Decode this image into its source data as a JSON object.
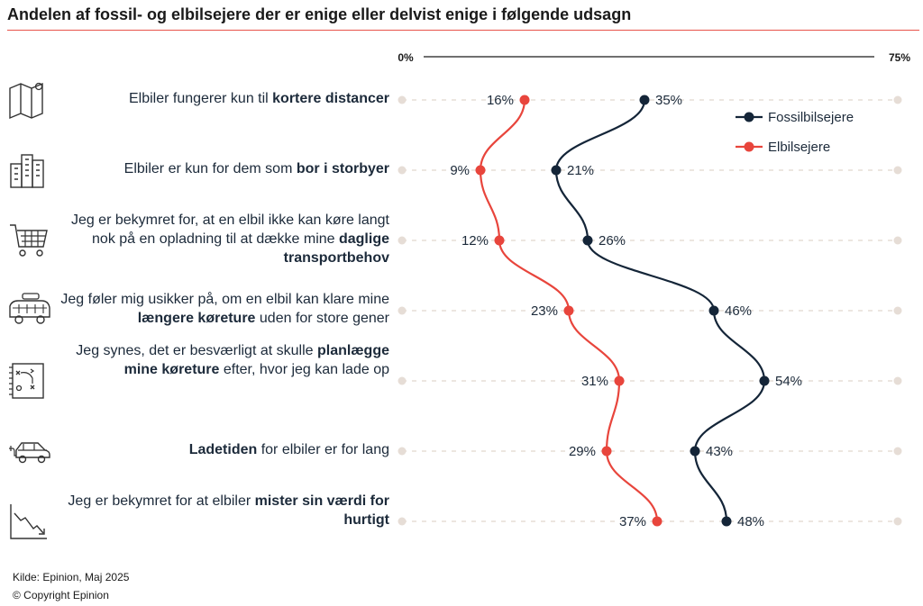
{
  "title": "Andelen af fossil- og elbilsejere der er enige eller delvist enige i følgende udsagn",
  "footer": {
    "source": "Kilde: Epinion, Maj 2025",
    "copyright": "© Copyright Epinion"
  },
  "colors": {
    "fossil": "#142538",
    "el": "#e8453c",
    "grid": "#e6ddd6",
    "accent": "#e8534a"
  },
  "statements": [
    {
      "icon": "map-icon",
      "parts": [
        {
          "text": "Elbiler fungerer kun til ",
          "bold": false
        },
        {
          "text": "kortere distancer",
          "bold": true
        }
      ]
    },
    {
      "icon": "city-buildings-icon",
      "parts": [
        {
          "text": "Elbiler er kun for dem som ",
          "bold": false
        },
        {
          "text": "bor i storbyer",
          "bold": true
        }
      ]
    },
    {
      "icon": "shopping-cart-icon",
      "parts": [
        {
          "text": "Jeg er bekymret for, at en elbil ikke kan køre langt nok på en opladning til at dække mine ",
          "bold": false
        },
        {
          "text": "daglige transportbehov",
          "bold": true
        }
      ]
    },
    {
      "icon": "van-icon",
      "parts": [
        {
          "text": "Jeg føler mig usikker på, om en elbil kan klare mine ",
          "bold": false
        },
        {
          "text": "længere køreture",
          "bold": true
        },
        {
          "text": " uden for store gener",
          "bold": false
        }
      ]
    },
    {
      "icon": "strategy-board-icon",
      "parts": [
        {
          "text": "Jeg synes, det er besværligt at skulle ",
          "bold": false
        },
        {
          "text": "planlægge mine køreture",
          "bold": true
        },
        {
          "text": " efter, hvor jeg kan lade op",
          "bold": false
        }
      ]
    },
    {
      "icon": "electric-car-icon",
      "parts": [
        {
          "text": "Ladetiden",
          "bold": true
        },
        {
          "text": " for elbiler er for lang",
          "bold": false
        }
      ]
    },
    {
      "icon": "declining-chart-icon",
      "parts": [
        {
          "text": "Jeg er bekymret for at elbiler ",
          "bold": false
        },
        {
          "text": "mister sin værdi for hurtigt",
          "bold": true
        }
      ]
    }
  ],
  "chart_data": {
    "type": "line",
    "orientation": "horizontal-values-vertical-categories",
    "xlim": [
      0,
      75
    ],
    "axis_tick_labels": [
      "0%",
      "75%"
    ],
    "legend_position": "top-right",
    "grid": true,
    "categories": [
      "Elbiler fungerer kun til kortere distancer",
      "Elbiler er kun for dem som bor i storbyer",
      "Jeg er bekymret for, at en elbil ikke kan køre langt nok på en opladning til at dække mine daglige transportbehov",
      "Jeg føler mig usikker på, om en elbil kan klare mine længere køreture uden for store gener",
      "Jeg synes, det er besværligt at skulle planlægge mine køreture efter, hvor jeg kan lade op",
      "Ladetiden for elbiler er for lang",
      "Jeg er bekymret for at elbiler mister sin værdi for hurtigt"
    ],
    "series": [
      {
        "name": "Fossilbilsejere",
        "color": "#142538",
        "values": [
          35,
          21,
          26,
          46,
          54,
          43,
          48
        ],
        "labels": [
          "35%",
          "21%",
          "26%",
          "46%",
          "54%",
          "43%",
          "48%"
        ]
      },
      {
        "name": "Elbilsejere",
        "color": "#e8453c",
        "values": [
          16,
          9,
          12,
          23,
          31,
          29,
          37
        ],
        "labels": [
          "16%",
          "9%",
          "12%",
          "23%",
          "31%",
          "29%",
          "37%"
        ]
      }
    ]
  }
}
